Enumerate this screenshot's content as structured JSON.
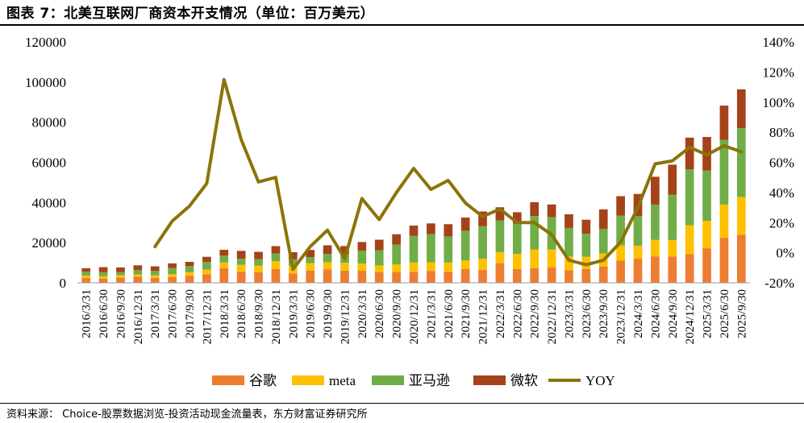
{
  "title": "图表 7：北美互联网厂商资本开支情况（单位：百万美元）",
  "source": "资料来源：   Choice-股票数据浏览-投资活动现金流量表，东方财富证券研究所",
  "colors": {
    "google": "#ED7D31",
    "meta": "#FFC000",
    "amazon": "#70AD47",
    "microsoft": "#A5421A",
    "yoy": "#8B7408"
  },
  "chart_data": {
    "type": "bar",
    "stacked": true,
    "categories": [
      "2016/3/31",
      "2016/6/30",
      "2016/9/30",
      "2016/12/31",
      "2017/3/31",
      "2017/6/30",
      "2017/9/30",
      "2017/12/31",
      "2018/3/31",
      "2018/6/30",
      "2018/9/30",
      "2018/12/31",
      "2019/3/31",
      "2019/6/30",
      "2019/9/30",
      "2019/12/31",
      "2020/3/31",
      "2020/6/30",
      "2020/9/30",
      "2020/12/31",
      "2021/3/31",
      "2021/6/30",
      "2021/9/30",
      "2021/12/31",
      "2022/3/31",
      "2022/6/30",
      "2022/9/30",
      "2022/12/31",
      "2023/3/31",
      "2023/6/30",
      "2023/9/30",
      "2023/12/31",
      "2024/3/31",
      "2024/6/30",
      "2024/9/30",
      "2024/12/31",
      "2025/3/31",
      "2025/6/30",
      "2025/9/30"
    ],
    "series": [
      {
        "name": "谷歌",
        "values": [
          2444,
          2136,
          2575,
          3078,
          2508,
          2831,
          3538,
          4307,
          7299,
          5477,
          5282,
          6847,
          4638,
          6126,
          6732,
          6052,
          6005,
          5391,
          5406,
          5479,
          5942,
          5496,
          6819,
          6383,
          9786,
          6828,
          7276,
          7595,
          6289,
          6888,
          8055,
          11019,
          12012,
          13186,
          13061,
          14276,
          17197,
          22446,
          23953
        ]
      },
      {
        "name": "meta",
        "values": [
          1132,
          1132,
          1120,
          1127,
          1184,
          1444,
          1755,
          2262,
          2812,
          3460,
          3345,
          3915,
          3837,
          3633,
          3532,
          3896,
          3558,
          3255,
          3689,
          4613,
          4303,
          4612,
          4313,
          5634,
          5551,
          7572,
          9375,
          9043,
          6842,
          6134,
          6543,
          7665,
          6400,
          8173,
          8258,
          14425,
          13692,
          16538,
          18829
        ]
      },
      {
        "name": "亚马逊",
        "values": [
          1918,
          2000,
          1600,
          2100,
          2200,
          3100,
          3000,
          3800,
          3400,
          3000,
          3200,
          3800,
          3200,
          3000,
          4100,
          4300,
          6500,
          7600,
          10000,
          13300,
          14000,
          13000,
          14800,
          16200,
          15700,
          15000,
          16600,
          16100,
          14200,
          11400,
          12300,
          14800,
          14900,
          17600,
          22600,
          27800,
          25000,
          32200,
          34200
        ]
      },
      {
        "name": "微软",
        "values": [
          1778,
          2538,
          2358,
          2402,
          2305,
          2283,
          2132,
          2586,
          2934,
          3980,
          3602,
          3707,
          3565,
          3623,
          4320,
          4060,
          4254,
          5223,
          5107,
          5114,
          5343,
          6089,
          6595,
          7303,
          6598,
          5750,
          6906,
          6283,
          6812,
          7000,
          9668,
          9679,
          10952,
          13873,
          14923,
          15804,
          16745,
          17079,
          19394
        ]
      }
    ],
    "line": {
      "name": "YOY",
      "axis": "right",
      "values": [
        null,
        null,
        null,
        null,
        4,
        21,
        31,
        46,
        115,
        75,
        47,
        50,
        -11,
        4,
        15,
        -4,
        36,
        22,
        40,
        56,
        42,
        48,
        33,
        24,
        29,
        20,
        20,
        12,
        -5,
        -8,
        -5,
        7,
        30,
        59,
        61,
        70,
        65,
        71,
        67
      ]
    },
    "yleft": {
      "min": 0,
      "max": 120000,
      "step": 20000,
      "ticks": [
        "0",
        "20000",
        "40000",
        "60000",
        "80000",
        "100000",
        "120000"
      ]
    },
    "yright": {
      "min": -20,
      "max": 140,
      "step": 20,
      "ticks": [
        "-20%",
        "0%",
        "20%",
        "40%",
        "60%",
        "80%",
        "100%",
        "120%",
        "140%"
      ]
    },
    "legend": [
      "谷歌",
      "meta",
      "亚马逊",
      "微软",
      "YOY"
    ],
    "legend_position": "bottom"
  }
}
